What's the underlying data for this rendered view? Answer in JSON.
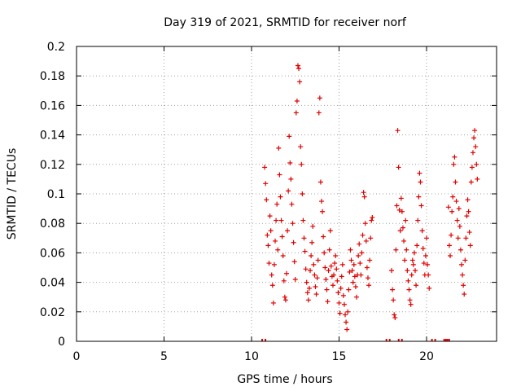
{
  "chart_data": {
    "type": "scatter",
    "title": "Day 319 of 2021, SRMTID for receiver norf",
    "xlabel": "GPS time / hours",
    "ylabel": "SRMTID / TECUs",
    "xlim": [
      0,
      24
    ],
    "ylim": [
      0,
      0.2
    ],
    "x_ticks": [
      0,
      5,
      10,
      15,
      20
    ],
    "x_tick_labels": [
      "0",
      "5",
      "10",
      "15",
      "20"
    ],
    "y_ticks": [
      0,
      0.02,
      0.04,
      0.06,
      0.08,
      0.1,
      0.12,
      0.14,
      0.16,
      0.18,
      0.2
    ],
    "y_tick_labels": [
      "0",
      "0.02",
      "0.04",
      "0.06",
      "0.08",
      "0.1",
      "0.12",
      "0.14",
      "0.16",
      "0.18",
      "0.2"
    ],
    "grid": true,
    "marker": "+",
    "marker_color": "#e00000",
    "series": [
      {
        "name": "SRMTID",
        "points": [
          [
            10.75,
            0.118
          ],
          [
            10.8,
            0.107
          ],
          [
            10.85,
            0.096
          ],
          [
            10.9,
            0.072
          ],
          [
            10.95,
            0.065
          ],
          [
            11.0,
            0.053
          ],
          [
            11.05,
            0.085
          ],
          [
            11.1,
            0.075
          ],
          [
            11.15,
            0.045
          ],
          [
            11.2,
            0.038
          ],
          [
            11.25,
            0.026
          ],
          [
            11.3,
            0.052
          ],
          [
            11.35,
            0.068
          ],
          [
            11.4,
            0.082
          ],
          [
            11.45,
            0.093
          ],
          [
            11.5,
            0.062
          ],
          [
            11.55,
            0.131
          ],
          [
            11.6,
            0.113
          ],
          [
            11.65,
            0.098
          ],
          [
            11.7,
            0.082
          ],
          [
            11.75,
            0.071
          ],
          [
            11.8,
            0.058
          ],
          [
            11.85,
            0.041
          ],
          [
            11.9,
            0.03
          ],
          [
            11.95,
            0.028
          ],
          [
            12.0,
            0.046
          ],
          [
            12.05,
            0.075
          ],
          [
            12.1,
            0.102
          ],
          [
            12.15,
            0.139
          ],
          [
            12.2,
            0.121
          ],
          [
            12.25,
            0.11
          ],
          [
            12.3,
            0.093
          ],
          [
            12.35,
            0.08
          ],
          [
            12.4,
            0.067
          ],
          [
            12.45,
            0.054
          ],
          [
            12.5,
            0.042
          ],
          [
            12.55,
            0.155
          ],
          [
            12.6,
            0.163
          ],
          [
            12.65,
            0.187
          ],
          [
            12.7,
            0.185
          ],
          [
            12.75,
            0.176
          ],
          [
            12.8,
            0.132
          ],
          [
            12.85,
            0.12
          ],
          [
            12.9,
            0.1
          ],
          [
            12.95,
            0.082
          ],
          [
            13.0,
            0.07
          ],
          [
            13.05,
            0.061
          ],
          [
            13.1,
            0.049
          ],
          [
            13.15,
            0.04
          ],
          [
            13.2,
            0.033
          ],
          [
            13.25,
            0.028
          ],
          [
            13.3,
            0.036
          ],
          [
            13.35,
            0.048
          ],
          [
            13.4,
            0.058
          ],
          [
            13.45,
            0.067
          ],
          [
            13.5,
            0.078
          ],
          [
            13.55,
            0.052
          ],
          [
            13.6,
            0.045
          ],
          [
            13.65,
            0.037
          ],
          [
            13.7,
            0.032
          ],
          [
            13.75,
            0.043
          ],
          [
            13.8,
            0.055
          ],
          [
            13.85,
            0.155
          ],
          [
            13.9,
            0.165
          ],
          [
            13.95,
            0.108
          ],
          [
            14.0,
            0.095
          ],
          [
            14.05,
            0.088
          ],
          [
            14.1,
            0.071
          ],
          [
            14.15,
            0.06
          ],
          [
            14.2,
            0.05
          ],
          [
            14.25,
            0.042
          ],
          [
            14.3,
            0.035
          ],
          [
            14.35,
            0.027
          ],
          [
            14.4,
            0.048
          ],
          [
            14.45,
            0.062
          ],
          [
            14.5,
            0.075
          ],
          [
            14.55,
            0.051
          ],
          [
            14.6,
            0.044
          ],
          [
            14.65,
            0.038
          ],
          [
            14.7,
            0.045
          ],
          [
            14.75,
            0.053
          ],
          [
            14.8,
            0.058
          ],
          [
            14.85,
            0.049
          ],
          [
            14.9,
            0.041
          ],
          [
            14.95,
            0.033
          ],
          [
            15.0,
            0.026
          ],
          [
            15.05,
            0.019
          ],
          [
            15.1,
            0.036
          ],
          [
            15.15,
            0.044
          ],
          [
            15.2,
            0.052
          ],
          [
            15.25,
            0.031
          ],
          [
            15.3,
            0.025
          ],
          [
            15.35,
            0.018
          ],
          [
            15.4,
            0.013
          ],
          [
            15.45,
            0.008
          ],
          [
            15.5,
            0.02
          ],
          [
            15.55,
            0.035
          ],
          [
            15.6,
            0.047
          ],
          [
            15.65,
            0.062
          ],
          [
            15.7,
            0.055
          ],
          [
            15.75,
            0.048
          ],
          [
            15.8,
            0.04
          ],
          [
            15.85,
            0.052
          ],
          [
            15.9,
            0.044
          ],
          [
            15.95,
            0.037
          ],
          [
            16.0,
            0.03
          ],
          [
            16.05,
            0.045
          ],
          [
            16.1,
            0.058
          ],
          [
            16.15,
            0.066
          ],
          [
            16.2,
            0.053
          ],
          [
            16.25,
            0.045
          ],
          [
            16.3,
            0.06
          ],
          [
            16.35,
            0.072
          ],
          [
            16.4,
            0.101
          ],
          [
            16.45,
            0.098
          ],
          [
            16.5,
            0.08
          ],
          [
            16.55,
            0.068
          ],
          [
            16.6,
            0.05
          ],
          [
            16.65,
            0.043
          ],
          [
            16.7,
            0.038
          ],
          [
            16.75,
            0.055
          ],
          [
            16.8,
            0.07
          ],
          [
            16.85,
            0.082
          ],
          [
            16.9,
            0.084
          ],
          [
            18.0,
            0.048
          ],
          [
            18.05,
            0.035
          ],
          [
            18.1,
            0.028
          ],
          [
            18.15,
            0.018
          ],
          [
            18.2,
            0.016
          ],
          [
            18.25,
            0.062
          ],
          [
            18.3,
            0.092
          ],
          [
            18.35,
            0.143
          ],
          [
            18.4,
            0.118
          ],
          [
            18.45,
            0.089
          ],
          [
            18.5,
            0.075
          ],
          [
            18.55,
            0.097
          ],
          [
            18.6,
            0.088
          ],
          [
            18.65,
            0.077
          ],
          [
            18.7,
            0.068
          ],
          [
            18.75,
            0.055
          ],
          [
            18.8,
            0.082
          ],
          [
            18.85,
            0.062
          ],
          [
            18.9,
            0.048
          ],
          [
            18.95,
            0.041
          ],
          [
            19.0,
            0.035
          ],
          [
            19.05,
            0.028
          ],
          [
            19.1,
            0.025
          ],
          [
            19.15,
            0.045
          ],
          [
            19.2,
            0.055
          ],
          [
            19.25,
            0.052
          ],
          [
            19.3,
            0.06
          ],
          [
            19.35,
            0.048
          ],
          [
            19.4,
            0.038
          ],
          [
            19.45,
            0.065
          ],
          [
            19.5,
            0.082
          ],
          [
            19.55,
            0.098
          ],
          [
            19.6,
            0.114
          ],
          [
            19.65,
            0.108
          ],
          [
            19.7,
            0.092
          ],
          [
            19.75,
            0.075
          ],
          [
            19.8,
            0.063
          ],
          [
            19.85,
            0.053
          ],
          [
            19.9,
            0.045
          ],
          [
            19.95,
            0.058
          ],
          [
            20.0,
            0.07
          ],
          [
            20.05,
            0.052
          ],
          [
            20.1,
            0.045
          ],
          [
            20.15,
            0.036
          ],
          [
            21.25,
            0.091
          ],
          [
            21.3,
            0.065
          ],
          [
            21.35,
            0.058
          ],
          [
            21.4,
            0.072
          ],
          [
            21.45,
            0.088
          ],
          [
            21.5,
            0.098
          ],
          [
            21.55,
            0.12
          ],
          [
            21.6,
            0.125
          ],
          [
            21.65,
            0.108
          ],
          [
            21.7,
            0.095
          ],
          [
            21.75,
            0.082
          ],
          [
            21.8,
            0.07
          ],
          [
            21.85,
            0.09
          ],
          [
            21.9,
            0.078
          ],
          [
            21.95,
            0.062
          ],
          [
            22.0,
            0.052
          ],
          [
            22.05,
            0.045
          ],
          [
            22.1,
            0.038
          ],
          [
            22.15,
            0.032
          ],
          [
            22.2,
            0.055
          ],
          [
            22.25,
            0.07
          ],
          [
            22.3,
            0.085
          ],
          [
            22.35,
            0.096
          ],
          [
            22.4,
            0.088
          ],
          [
            22.45,
            0.074
          ],
          [
            22.5,
            0.065
          ],
          [
            22.55,
            0.108
          ],
          [
            22.6,
            0.118
          ],
          [
            22.65,
            0.128
          ],
          [
            22.7,
            0.138
          ],
          [
            22.75,
            0.143
          ],
          [
            22.8,
            0.132
          ],
          [
            22.85,
            0.12
          ],
          [
            22.9,
            0.11
          ]
        ]
      }
    ],
    "zero_markers": [
      10.7,
      17.8,
      18.5,
      20.4,
      21.1,
      21.2
    ]
  }
}
